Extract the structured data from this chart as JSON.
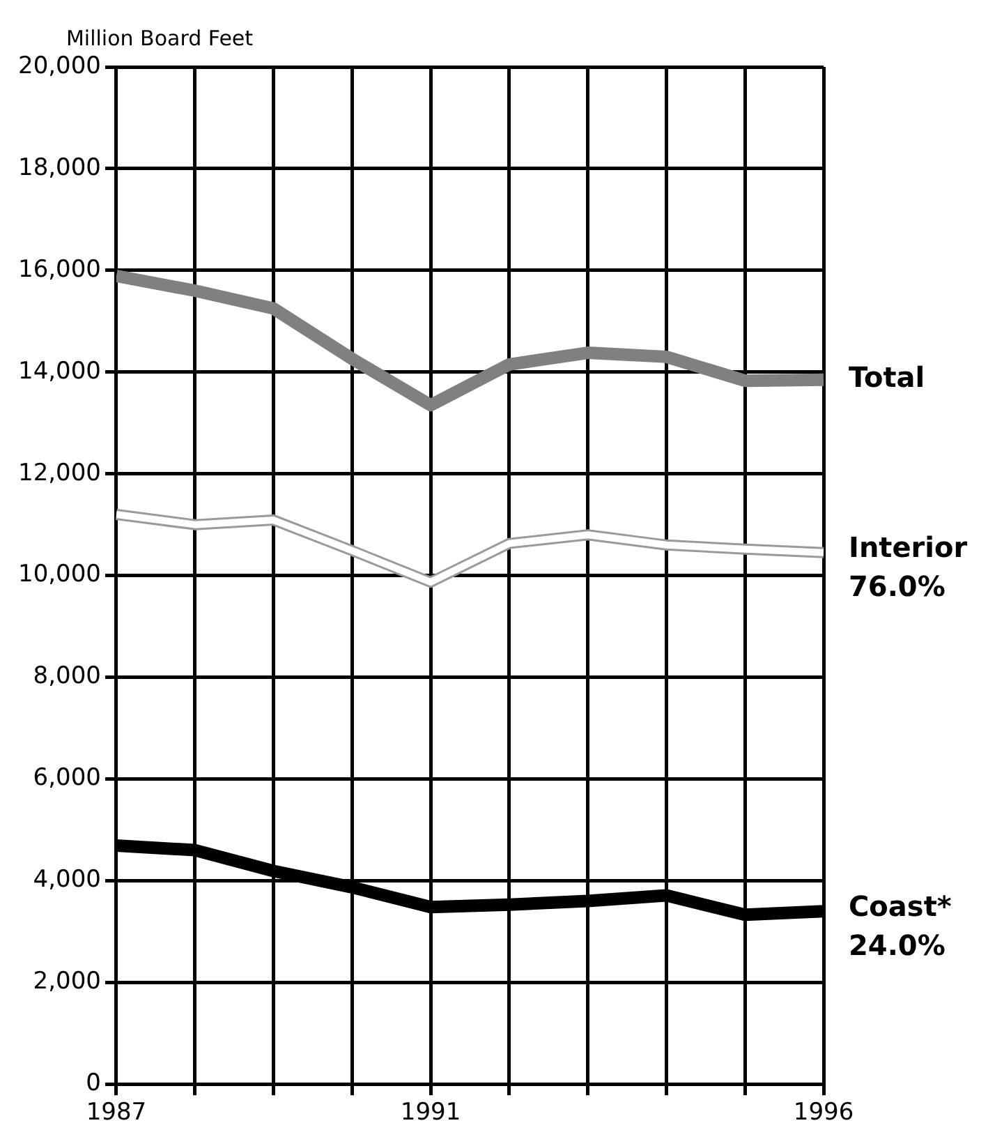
{
  "chart_data": {
    "type": "line",
    "ylabel": "Million Board Feet",
    "x": [
      1987,
      1988,
      1989,
      1990,
      1991,
      1992,
      1993,
      1994,
      1995,
      1996
    ],
    "series": [
      {
        "name": "Total",
        "color": "#808080",
        "values": [
          15890,
          15600,
          15250,
          14260,
          13350,
          14150,
          14380,
          14300,
          13830,
          13850
        ]
      },
      {
        "name": "Interior",
        "color": "#ffffff",
        "values": [
          11200,
          11000,
          11090,
          10490,
          9870,
          10630,
          10800,
          10600,
          10520,
          10450
        ]
      },
      {
        "name": "Coast*",
        "color": "#000000",
        "values": [
          4690,
          4600,
          4190,
          3870,
          3480,
          3530,
          3600,
          3710,
          3330,
          3400
        ]
      }
    ],
    "annotations": [
      {
        "text": "76.0%",
        "x": 1996,
        "y": 10450
      },
      {
        "text": "24.0%",
        "x": 1996,
        "y": 3400
      }
    ],
    "xlim": [
      1987,
      1996
    ],
    "xticks": [
      1987,
      {
        "value": 1988,
        "label": null
      },
      {
        "value": 1989,
        "label": null
      },
      {
        "value": 1990,
        "label": null
      },
      1991,
      {
        "value": 1992,
        "label": null
      },
      {
        "value": 1993,
        "label": null
      },
      {
        "value": 1994,
        "label": null
      },
      {
        "value": 1995,
        "label": null
      },
      1996
    ],
    "ylim": [
      0,
      20000
    ],
    "yticks": [
      0,
      {
        "value": 2000,
        "label": "2,000"
      },
      {
        "value": 4000,
        "label": "4,000"
      },
      {
        "value": 6000,
        "label": "6,000"
      },
      {
        "value": 8000,
        "label": "8,000"
      },
      {
        "value": 10000,
        "label": "10,000"
      },
      {
        "value": 12000,
        "label": "12,000"
      },
      {
        "value": 14000,
        "label": "14,000"
      },
      {
        "value": 16000,
        "label": "16,000"
      },
      {
        "value": 18000,
        "label": "18,000"
      },
      {
        "value": 20000,
        "label": "20,000"
      }
    ],
    "grid": true,
    "legend": false,
    "marker": "none",
    "line_style": "solid"
  }
}
